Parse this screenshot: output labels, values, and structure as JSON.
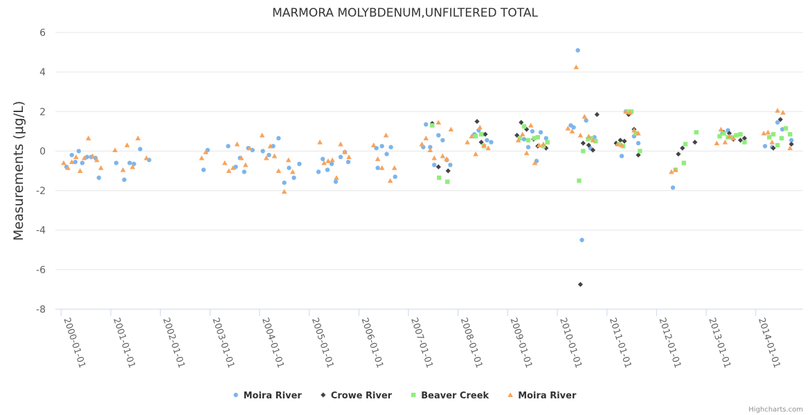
{
  "chart_data": {
    "type": "scatter",
    "title": "MARMORA MOLYBDENUM,UNFILTERED TOTAL",
    "xlabel": "",
    "ylabel": "Measurements (μg/L)",
    "ylim": [
      -8,
      6
    ],
    "yticks": [
      6,
      4,
      2,
      0,
      -2,
      -4,
      -6,
      -8
    ],
    "xlim": [
      "1999-11-20",
      "2014-12-15"
    ],
    "xtick_labels": [
      "2000-01-01",
      "2001-01-01",
      "2002-01-01",
      "2003-01-01",
      "2004-01-01",
      "2005-01-01",
      "2006-01-01",
      "2007-01-01",
      "2008-01-01",
      "2009-01-01",
      "2010-01-01",
      "2011-01-01",
      "2012-01-01",
      "2013-01-01",
      "2014-01-01"
    ],
    "legend_position": "bottom-center",
    "credits": "Highcharts.com",
    "series": [
      {
        "name": "Moira River",
        "color": "#7cb5ec",
        "marker": "circle",
        "points": [
          [
            "2000-02-10",
            -0.8
          ],
          [
            "2000-03-20",
            -0.2
          ],
          [
            "2000-04-15",
            -0.55
          ],
          [
            "2000-05-10",
            0.0
          ],
          [
            "2000-06-05",
            -0.6
          ],
          [
            "2000-07-10",
            -0.3
          ],
          [
            "2000-08-10",
            -0.3
          ],
          [
            "2000-09-10",
            -0.35
          ],
          [
            "2000-10-05",
            -1.35
          ],
          [
            "2001-02-10",
            -0.6
          ],
          [
            "2001-04-10",
            -1.45
          ],
          [
            "2001-05-20",
            -0.6
          ],
          [
            "2001-06-20",
            -0.65
          ],
          [
            "2001-08-05",
            0.1
          ],
          [
            "2001-10-10",
            -0.45
          ],
          [
            "2002-11-15",
            -0.95
          ],
          [
            "2002-12-15",
            0.05
          ],
          [
            "2003-05-15",
            0.25
          ],
          [
            "2003-07-10",
            -0.8
          ],
          [
            "2003-08-10",
            -0.35
          ],
          [
            "2003-09-10",
            -1.05
          ],
          [
            "2003-10-10",
            0.15
          ],
          [
            "2003-11-10",
            0.05
          ],
          [
            "2004-01-25",
            0.0
          ],
          [
            "2004-03-10",
            -0.2
          ],
          [
            "2004-04-10",
            0.25
          ],
          [
            "2004-05-20",
            0.65
          ],
          [
            "2004-07-01",
            -1.6
          ],
          [
            "2004-08-05",
            -0.85
          ],
          [
            "2004-09-10",
            -1.35
          ],
          [
            "2004-10-20",
            -0.65
          ],
          [
            "2005-03-10",
            -1.05
          ],
          [
            "2005-04-10",
            -0.4
          ],
          [
            "2005-05-15",
            -0.95
          ],
          [
            "2005-06-15",
            -0.65
          ],
          [
            "2005-07-15",
            -1.55
          ],
          [
            "2005-08-20",
            -0.3
          ],
          [
            "2005-09-20",
            -0.05
          ],
          [
            "2005-10-15",
            -0.55
          ],
          [
            "2006-05-10",
            0.15
          ],
          [
            "2006-05-20",
            -0.85
          ],
          [
            "2006-06-20",
            0.25
          ],
          [
            "2006-07-25",
            -0.15
          ],
          [
            "2006-08-25",
            0.2
          ],
          [
            "2006-09-25",
            -1.3
          ],
          [
            "2007-04-20",
            0.2
          ],
          [
            "2007-05-10",
            1.35
          ],
          [
            "2007-06-10",
            0.2
          ],
          [
            "2007-07-10",
            -0.7
          ],
          [
            "2007-08-10",
            0.8
          ],
          [
            "2007-09-10",
            0.55
          ],
          [
            "2007-10-10",
            -0.45
          ],
          [
            "2007-11-05",
            -0.7
          ],
          [
            "2008-05-01",
            0.85
          ],
          [
            "2008-06-01",
            1.05
          ],
          [
            "2008-07-01",
            0.85
          ],
          [
            "2008-08-01",
            0.55
          ],
          [
            "2008-09-01",
            0.45
          ],
          [
            "2009-05-01",
            0.6
          ],
          [
            "2009-06-01",
            0.2
          ],
          [
            "2009-07-01",
            1.0
          ],
          [
            "2009-08-01",
            -0.5
          ],
          [
            "2009-09-01",
            0.95
          ],
          [
            "2009-10-10",
            0.65
          ],
          [
            "2010-04-10",
            1.3
          ],
          [
            "2010-05-01",
            1.2
          ],
          [
            "2010-06-01",
            5.1
          ],
          [
            "2010-07-01",
            -4.5
          ],
          [
            "2010-08-01",
            1.55
          ],
          [
            "2010-09-01",
            0.15
          ],
          [
            "2010-10-01",
            0.7
          ],
          [
            "2011-04-20",
            -0.25
          ],
          [
            "2011-05-20",
            2.0
          ],
          [
            "2011-07-20",
            0.75
          ],
          [
            "2011-08-20",
            0.4
          ],
          [
            "2012-05-01",
            -1.85
          ],
          [
            "2013-05-01",
            0.9
          ],
          [
            "2013-06-10",
            1.05
          ],
          [
            "2014-03-10",
            0.25
          ],
          [
            "2014-05-01",
            0.2
          ],
          [
            "2014-06-10",
            1.45
          ],
          [
            "2014-07-15",
            1.1
          ],
          [
            "2014-09-20",
            0.55
          ]
        ]
      },
      {
        "name": "Crowe River",
        "color": "#434348",
        "marker": "diamond",
        "points": [
          [
            "2007-06-25",
            1.4
          ],
          [
            "2007-08-10",
            -0.8
          ],
          [
            "2007-10-20",
            -1.0
          ],
          [
            "2008-05-20",
            1.5
          ],
          [
            "2008-06-20",
            0.45
          ],
          [
            "2008-07-20",
            0.85
          ],
          [
            "2009-03-10",
            0.8
          ],
          [
            "2009-04-10",
            1.45
          ],
          [
            "2009-05-20",
            1.1
          ],
          [
            "2009-07-10",
            0.6
          ],
          [
            "2009-08-10",
            0.25
          ],
          [
            "2009-10-10",
            0.15
          ],
          [
            "2010-06-20",
            -6.75
          ],
          [
            "2010-07-10",
            0.4
          ],
          [
            "2010-08-20",
            0.3
          ],
          [
            "2010-09-20",
            0.05
          ],
          [
            "2010-10-20",
            1.85
          ],
          [
            "2011-03-10",
            0.4
          ],
          [
            "2011-04-10",
            0.55
          ],
          [
            "2011-05-10",
            0.5
          ],
          [
            "2011-06-10",
            1.85
          ],
          [
            "2011-07-20",
            1.1
          ],
          [
            "2011-08-20",
            -0.2
          ],
          [
            "2012-06-10",
            -0.15
          ],
          [
            "2012-07-10",
            0.15
          ],
          [
            "2012-10-10",
            0.45
          ],
          [
            "2013-05-10",
            0.95
          ],
          [
            "2013-06-20",
            0.9
          ],
          [
            "2013-07-20",
            0.6
          ],
          [
            "2013-09-10",
            0.55
          ],
          [
            "2013-10-10",
            0.65
          ],
          [
            "2014-05-10",
            0.15
          ],
          [
            "2014-07-01",
            1.6
          ],
          [
            "2014-09-20",
            0.35
          ]
        ]
      },
      {
        "name": "Beaver Creek",
        "color": "#90ed7d",
        "marker": "square",
        "points": [
          [
            "2007-06-25",
            1.3
          ],
          [
            "2007-08-15",
            -1.35
          ],
          [
            "2007-10-15",
            -1.55
          ],
          [
            "2008-05-10",
            0.75
          ],
          [
            "2008-06-20",
            0.85
          ],
          [
            "2008-07-10",
            0.25
          ],
          [
            "2009-04-01",
            0.65
          ],
          [
            "2009-05-01",
            1.25
          ],
          [
            "2009-06-01",
            0.55
          ],
          [
            "2009-07-15",
            0.65
          ],
          [
            "2009-08-10",
            0.7
          ],
          [
            "2009-09-20",
            0.25
          ],
          [
            "2009-10-20",
            0.45
          ],
          [
            "2010-06-10",
            -1.5
          ],
          [
            "2010-07-10",
            0.0
          ],
          [
            "2010-08-15",
            0.6
          ],
          [
            "2010-09-10",
            0.65
          ],
          [
            "2010-10-10",
            0.5
          ],
          [
            "2011-04-01",
            0.35
          ],
          [
            "2011-05-01",
            0.25
          ],
          [
            "2011-06-01",
            2.0
          ],
          [
            "2011-07-01",
            2.0
          ],
          [
            "2011-08-01",
            0.9
          ],
          [
            "2011-09-01",
            0.0
          ],
          [
            "2012-05-20",
            -0.95
          ],
          [
            "2012-07-20",
            -0.6
          ],
          [
            "2012-08-01",
            0.35
          ],
          [
            "2012-10-20",
            0.95
          ],
          [
            "2013-04-10",
            0.75
          ],
          [
            "2013-05-10",
            0.9
          ],
          [
            "2013-06-10",
            0.7
          ],
          [
            "2013-07-10",
            0.7
          ],
          [
            "2013-08-10",
            0.8
          ],
          [
            "2013-09-10",
            0.85
          ],
          [
            "2013-10-10",
            0.45
          ],
          [
            "2014-04-10",
            0.7
          ],
          [
            "2014-05-10",
            0.85
          ],
          [
            "2014-06-10",
            0.3
          ],
          [
            "2014-07-10",
            0.65
          ],
          [
            "2014-08-10",
            1.15
          ],
          [
            "2014-09-10",
            0.85
          ]
        ]
      },
      {
        "name": "Moira River",
        "color": "#f7a35c",
        "marker": "triangle",
        "points": [
          [
            "2000-01-20",
            -0.6
          ],
          [
            "2000-02-20",
            -0.85
          ],
          [
            "2000-03-20",
            -0.55
          ],
          [
            "2000-04-20",
            -0.3
          ],
          [
            "2000-05-20",
            -1.0
          ],
          [
            "2000-06-20",
            -0.35
          ],
          [
            "2000-07-20",
            0.65
          ],
          [
            "2000-08-20",
            -0.25
          ],
          [
            "2000-09-20",
            -0.45
          ],
          [
            "2000-10-20",
            -0.85
          ],
          [
            "2001-02-01",
            0.05
          ],
          [
            "2001-04-01",
            -0.95
          ],
          [
            "2001-05-01",
            0.3
          ],
          [
            "2001-06-10",
            -0.8
          ],
          [
            "2001-07-20",
            0.65
          ],
          [
            "2001-09-20",
            -0.35
          ],
          [
            "2002-11-01",
            -0.35
          ],
          [
            "2002-12-01",
            -0.05
          ],
          [
            "2003-04-20",
            -0.6
          ],
          [
            "2003-05-20",
            -1.0
          ],
          [
            "2003-06-20",
            -0.85
          ],
          [
            "2003-07-20",
            0.35
          ],
          [
            "2003-08-20",
            -0.35
          ],
          [
            "2003-09-20",
            -0.7
          ],
          [
            "2003-10-20",
            0.15
          ],
          [
            "2004-01-20",
            0.8
          ],
          [
            "2004-02-20",
            -0.35
          ],
          [
            "2004-03-20",
            0.25
          ],
          [
            "2004-04-20",
            -0.25
          ],
          [
            "2004-05-20",
            -1.0
          ],
          [
            "2004-07-01",
            -2.05
          ],
          [
            "2004-08-01",
            -0.45
          ],
          [
            "2004-09-01",
            -1.05
          ],
          [
            "2005-03-20",
            0.45
          ],
          [
            "2005-04-20",
            -0.6
          ],
          [
            "2005-05-20",
            -0.5
          ],
          [
            "2005-06-20",
            -0.45
          ],
          [
            "2005-07-20",
            -1.35
          ],
          [
            "2005-08-20",
            0.35
          ],
          [
            "2005-09-20",
            -0.05
          ],
          [
            "2005-10-20",
            -0.3
          ],
          [
            "2006-04-20",
            0.3
          ],
          [
            "2006-05-20",
            -0.4
          ],
          [
            "2006-06-20",
            -0.85
          ],
          [
            "2006-07-20",
            0.8
          ],
          [
            "2006-08-20",
            -1.5
          ],
          [
            "2006-09-20",
            -0.85
          ],
          [
            "2007-04-10",
            0.35
          ],
          [
            "2007-05-10",
            0.65
          ],
          [
            "2007-06-10",
            0.05
          ],
          [
            "2007-07-10",
            -0.35
          ],
          [
            "2007-08-10",
            1.45
          ],
          [
            "2007-09-10",
            -0.25
          ],
          [
            "2007-10-10",
            -0.4
          ],
          [
            "2007-11-10",
            1.1
          ],
          [
            "2008-03-10",
            0.45
          ],
          [
            "2008-04-10",
            0.75
          ],
          [
            "2008-05-10",
            -0.15
          ],
          [
            "2008-06-10",
            1.2
          ],
          [
            "2008-07-10",
            0.3
          ],
          [
            "2008-08-10",
            0.15
          ],
          [
            "2009-03-20",
            0.55
          ],
          [
            "2009-04-20",
            0.85
          ],
          [
            "2009-05-20",
            -0.1
          ],
          [
            "2009-06-20",
            1.3
          ],
          [
            "2009-07-20",
            -0.6
          ],
          [
            "2009-08-20",
            0.3
          ],
          [
            "2009-09-20",
            0.35
          ],
          [
            "2010-03-20",
            1.15
          ],
          [
            "2010-04-20",
            1.0
          ],
          [
            "2010-05-20",
            4.25
          ],
          [
            "2010-06-20",
            0.8
          ],
          [
            "2010-07-20",
            1.75
          ],
          [
            "2010-08-20",
            0.75
          ],
          [
            "2010-09-20",
            0.55
          ],
          [
            "2011-03-20",
            0.35
          ],
          [
            "2011-04-20",
            0.3
          ],
          [
            "2011-05-20",
            2.0
          ],
          [
            "2011-06-20",
            1.95
          ],
          [
            "2011-07-20",
            1.05
          ],
          [
            "2011-08-20",
            0.9
          ],
          [
            "2012-04-20",
            -1.05
          ],
          [
            "2012-05-20",
            -0.95
          ],
          [
            "2013-03-20",
            0.4
          ],
          [
            "2013-04-20",
            1.1
          ],
          [
            "2013-05-20",
            0.45
          ],
          [
            "2013-06-20",
            0.75
          ],
          [
            "2013-07-20",
            0.65
          ],
          [
            "2014-03-01",
            0.9
          ],
          [
            "2014-04-01",
            0.95
          ],
          [
            "2014-05-01",
            0.45
          ],
          [
            "2014-06-10",
            2.05
          ],
          [
            "2014-07-20",
            1.95
          ],
          [
            "2014-09-10",
            0.15
          ]
        ]
      }
    ]
  }
}
